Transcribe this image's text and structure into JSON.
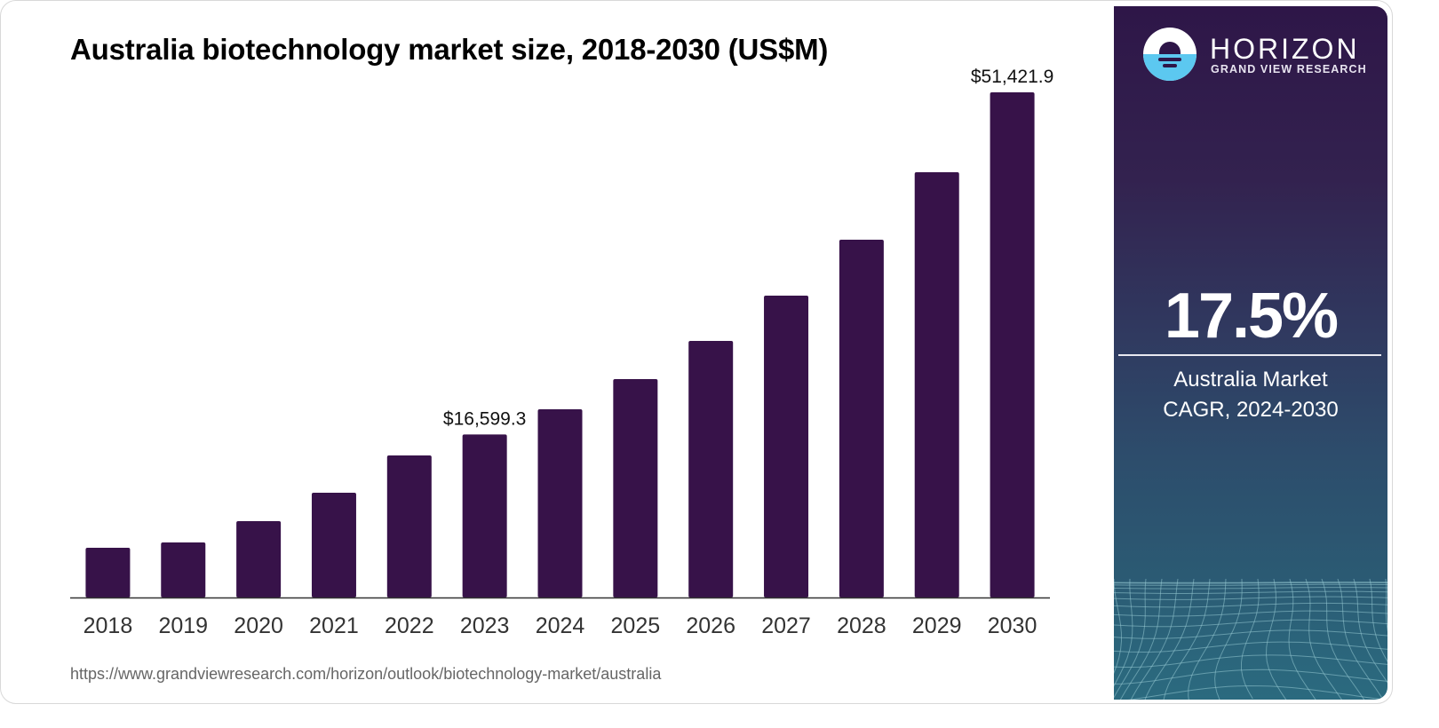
{
  "page": {
    "title": "Australia biotechnology market size, 2018-2030 (US$M)",
    "source_url": "https://www.grandviewresearch.com/horizon/outlook/biotechnology-market/australia"
  },
  "brand": {
    "name": "HORIZON",
    "subtitle": "GRAND VIEW RESEARCH",
    "logo_icon": "horizon-sun-water-logo"
  },
  "highlight": {
    "value": "17.5%",
    "label_line1": "Australia Market",
    "label_line2": "CAGR, 2024-2030"
  },
  "colors": {
    "bar": "#371249",
    "axis": "#333333",
    "panel_top": "#2e1648",
    "panel_bottom": "#2b6a7f",
    "logo_water": "#5cc8f0"
  },
  "chart_data": {
    "type": "bar",
    "title": "Australia biotechnology market size, 2018-2030 (US$M)",
    "xlabel": "",
    "ylabel": "",
    "categories": [
      "2018",
      "2019",
      "2020",
      "2021",
      "2022",
      "2023",
      "2024",
      "2025",
      "2026",
      "2027",
      "2028",
      "2029",
      "2030"
    ],
    "values": [
      5061,
      5603,
      7772,
      10664,
      14459,
      16599.3,
      19158,
      22231,
      26117,
      30726,
      36419,
      43287,
      51421.9
    ],
    "data_labels": [
      {
        "category": "2023",
        "text": "$16,599.3"
      },
      {
        "category": "2030",
        "text": "$51,421.9"
      }
    ],
    "ylim": [
      0,
      51421.9
    ],
    "grid": false,
    "y_axis_visible": false,
    "legend": "none"
  }
}
